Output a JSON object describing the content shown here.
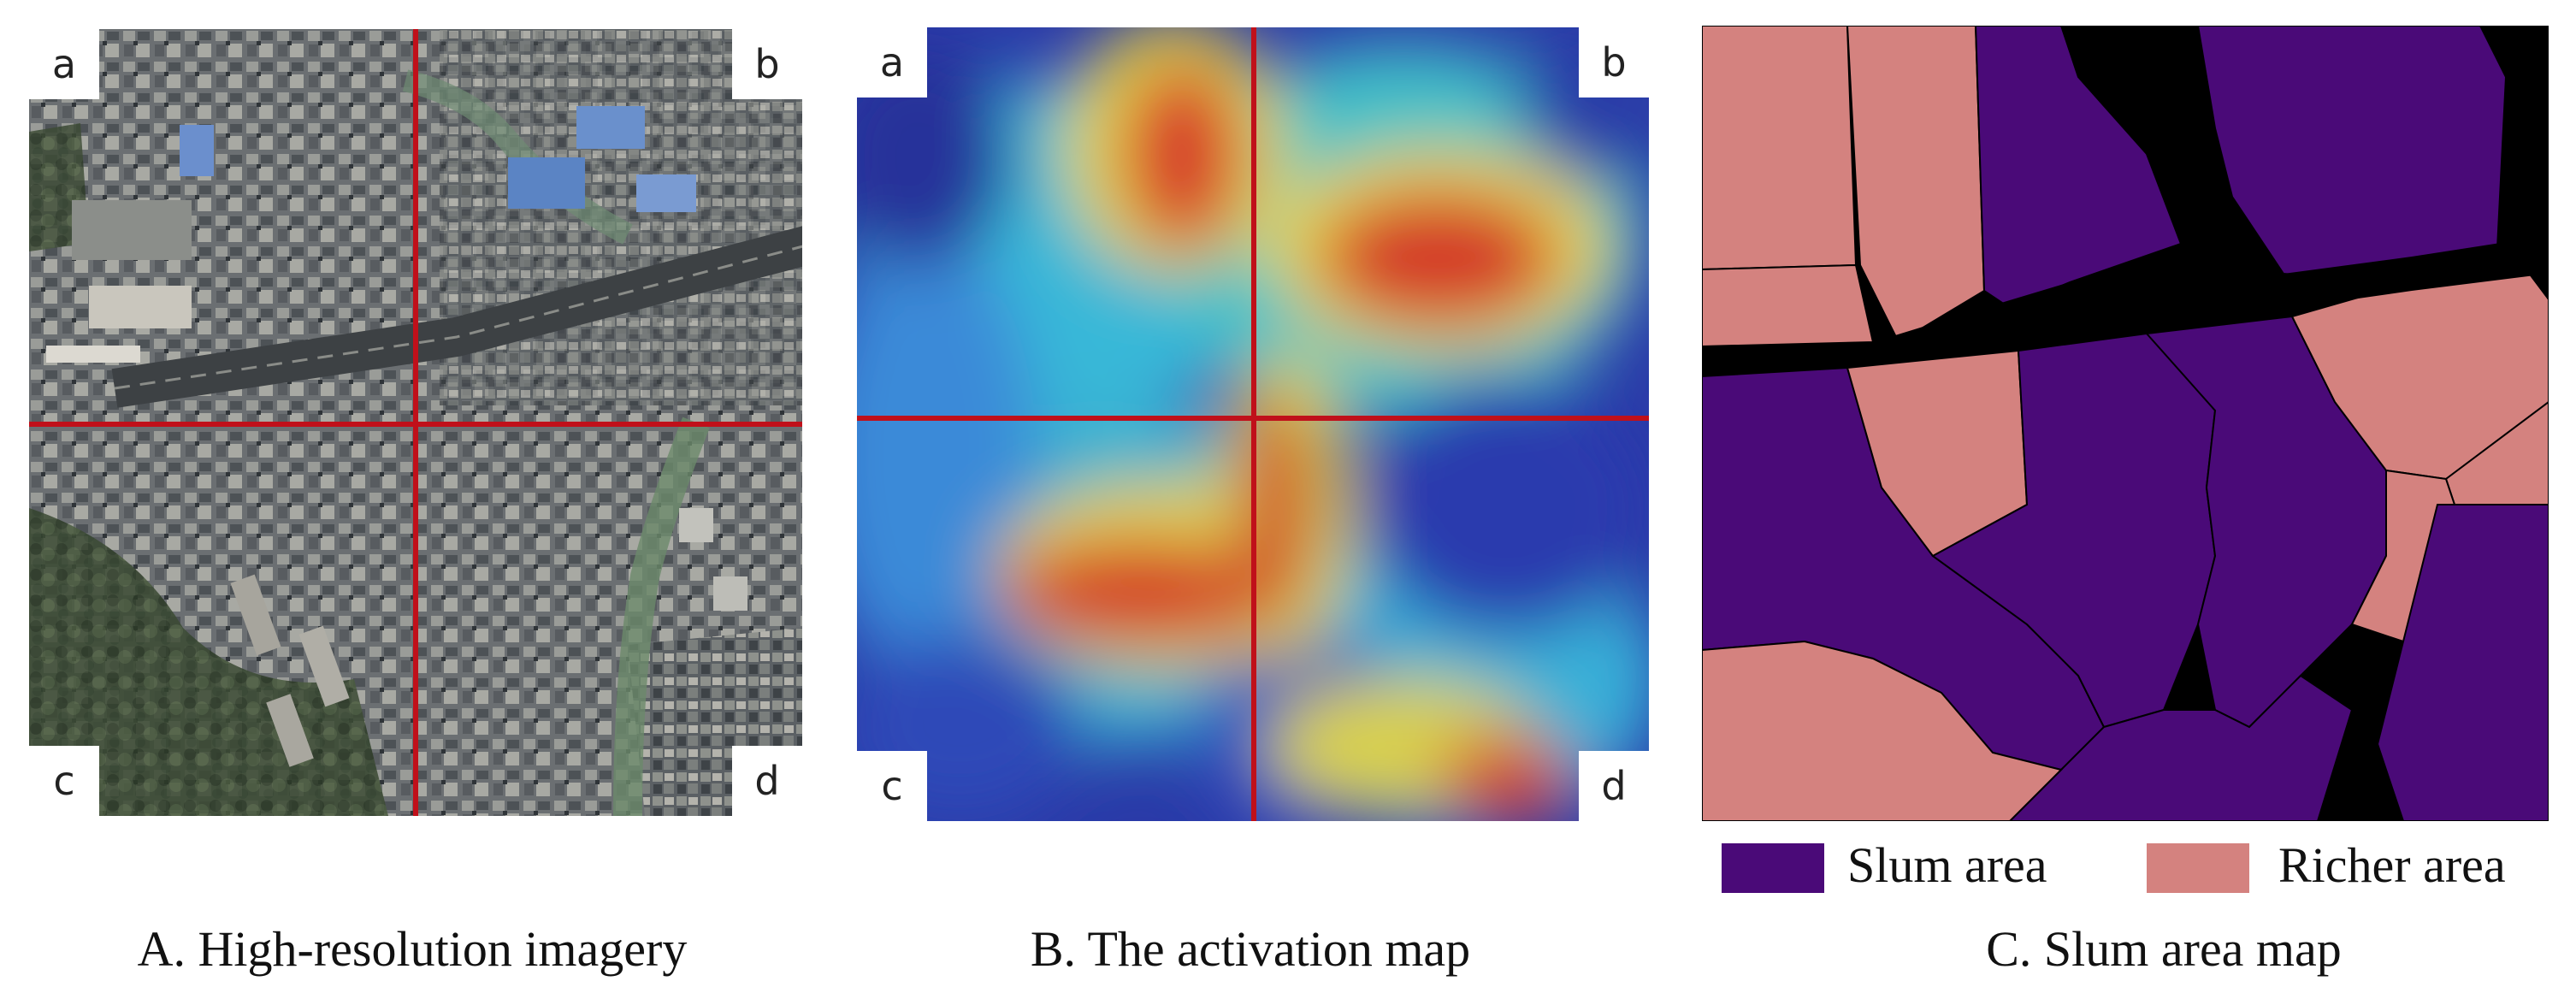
{
  "panels": {
    "a": {
      "caption": "A. High-resolution imagery",
      "quadrant_labels": [
        "a",
        "b",
        "c",
        "d"
      ]
    },
    "b": {
      "caption": "B. The activation map",
      "quadrant_labels": [
        "a",
        "b",
        "c",
        "d"
      ]
    },
    "c": {
      "caption": "C. Slum area map",
      "legend": [
        {
          "label": "Slum area",
          "color": "#4a0a78"
        },
        {
          "label": "Richer area",
          "color": "#d4827f"
        }
      ]
    }
  },
  "colors": {
    "divider_line": "#c0101a",
    "slum": "#4a0a78",
    "richer": "#d4827f",
    "road_background": "#000000"
  }
}
